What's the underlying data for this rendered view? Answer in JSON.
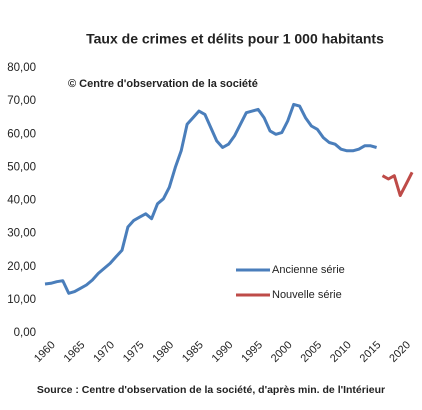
{
  "chart_data": {
    "type": "line",
    "title": "Taux de crimes et délits pour 1 000 habitants",
    "annotation": "© Centre  d'observation de la société",
    "source": "Source : Centre d'observation de la société, d'après min. de l'Intérieur",
    "x": [
      1960,
      1961,
      1962,
      1963,
      1964,
      1965,
      1966,
      1967,
      1968,
      1969,
      1970,
      1971,
      1972,
      1973,
      1974,
      1975,
      1976,
      1977,
      1978,
      1979,
      1980,
      1981,
      1982,
      1983,
      1984,
      1985,
      1986,
      1987,
      1988,
      1989,
      1990,
      1991,
      1992,
      1993,
      1994,
      1995,
      1996,
      1997,
      1998,
      1999,
      2000,
      2001,
      2002,
      2003,
      2004,
      2005,
      2006,
      2007,
      2008,
      2009,
      2010,
      2011,
      2012,
      2013,
      2014,
      2015,
      2016,
      2017,
      2018,
      2019,
      2020,
      2021,
      2022
    ],
    "series": [
      {
        "name": "Ancienne série",
        "color": "#4a7ebb",
        "values": [
          14.8,
          15,
          15.5,
          15.8,
          12,
          12.5,
          13.5,
          14.5,
          16,
          18,
          19.5,
          21,
          23,
          25,
          32,
          34,
          35,
          36,
          34.5,
          39,
          40.5,
          44,
          50,
          55,
          63,
          65,
          67,
          66,
          62,
          58,
          56,
          57,
          59.5,
          63,
          66.5,
          67,
          67.5,
          65,
          61,
          60,
          60.5,
          64,
          69,
          68.5,
          65,
          62.5,
          61.5,
          59,
          57.5,
          57,
          55.5,
          55,
          55,
          55.5,
          56.5,
          56.5,
          56,
          null,
          null,
          null,
          null,
          null,
          null
        ]
      },
      {
        "name": "Nouvelle série",
        "color": "#be4b48",
        "values": [
          null,
          null,
          null,
          null,
          null,
          null,
          null,
          null,
          null,
          null,
          null,
          null,
          null,
          null,
          null,
          null,
          null,
          null,
          null,
          null,
          null,
          null,
          null,
          null,
          null,
          null,
          null,
          null,
          null,
          null,
          null,
          null,
          null,
          null,
          null,
          null,
          null,
          null,
          null,
          null,
          null,
          null,
          null,
          null,
          null,
          null,
          null,
          null,
          null,
          null,
          null,
          null,
          null,
          null,
          null,
          null,
          null,
          47.5,
          46.5,
          47.5,
          41.5,
          45,
          48.5
        ]
      }
    ],
    "xlim": [
      1960,
      2023
    ],
    "xticks": [
      1960,
      1965,
      1970,
      1975,
      1980,
      1985,
      1990,
      1995,
      2000,
      2005,
      2010,
      2015,
      2020
    ],
    "ylim": [
      0,
      80
    ],
    "yticks": [
      {
        "value": 0,
        "label": "0,00"
      },
      {
        "value": 10,
        "label": "10,00"
      },
      {
        "value": 20,
        "label": "20,00"
      },
      {
        "value": 30,
        "label": "30,00"
      },
      {
        "value": 40,
        "label": "40,00"
      },
      {
        "value": 50,
        "label": "50,00"
      },
      {
        "value": 60,
        "label": "60,00"
      },
      {
        "value": 70,
        "label": "70,00"
      },
      {
        "value": 80,
        "label": "80,00"
      }
    ]
  }
}
